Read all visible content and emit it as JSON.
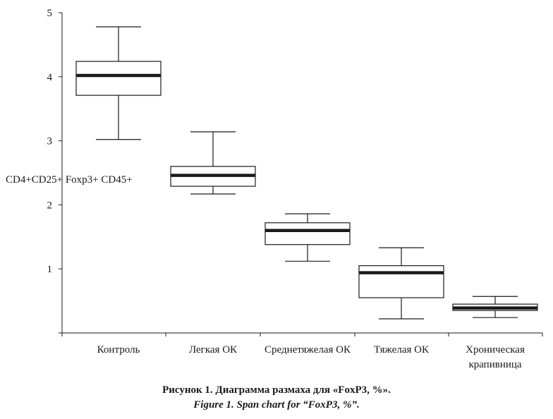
{
  "chart_data": {
    "type": "box",
    "ylabel": "CD4+CD25+ Foxp3+ CD45+",
    "xlabel": "",
    "ylim": [
      0,
      5
    ],
    "yticks": [
      1,
      2,
      3,
      4,
      5
    ],
    "categories": [
      [
        "Контроль"
      ],
      [
        "Легкая ОК"
      ],
      [
        "Среднетяжелая ОК"
      ],
      [
        "Тяжелая ОК"
      ],
      [
        "Хроническая",
        "крапивница"
      ]
    ],
    "boxes": [
      {
        "min": 3.02,
        "q1": 3.71,
        "median": 4.02,
        "q3": 4.24,
        "max": 4.78
      },
      {
        "min": 2.17,
        "q1": 2.29,
        "median": 2.46,
        "q3": 2.6,
        "max": 3.14
      },
      {
        "min": 1.12,
        "q1": 1.38,
        "median": 1.6,
        "q3": 1.72,
        "max": 1.86
      },
      {
        "min": 0.22,
        "q1": 0.55,
        "median": 0.94,
        "q3": 1.05,
        "max": 1.33
      },
      {
        "min": 0.24,
        "q1": 0.35,
        "median": 0.39,
        "q3": 0.45,
        "max": 0.57
      }
    ],
    "grid": false,
    "legend": "none"
  },
  "captions": {
    "ru": "Рисунок 1. Диаграмма размаха для «FoxP3, %».",
    "en": "Figure 1. Span chart for “FoxP3, %”."
  },
  "colors": {
    "ink": "#1a1a1a",
    "box_fill": "#ffffff"
  }
}
